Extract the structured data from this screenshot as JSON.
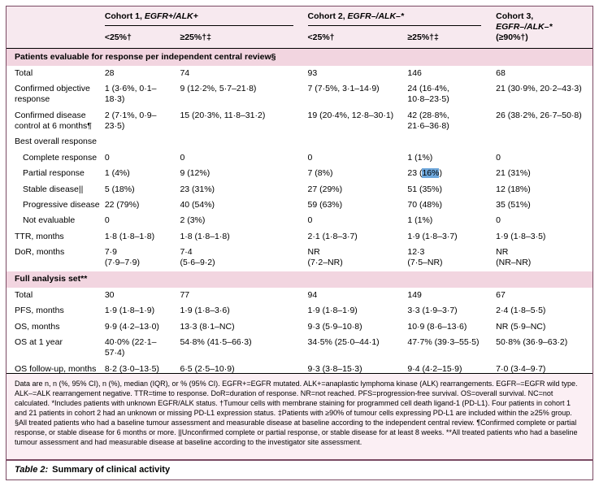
{
  "colors": {
    "border": "#7a4a63",
    "headbg": "#f7e9ef",
    "sectionbg": "#f2d5e0",
    "footbg": "#fbeff4",
    "sel": "#6fa8dc"
  },
  "header": {
    "groups": [
      {
        "prefix": "Cohort 1, ",
        "gene": "EGFR+/ALK+",
        "suffix": "",
        "subcols": [
          "<25%†",
          "≥25%†‡"
        ]
      },
      {
        "prefix": "Cohort 2, ",
        "gene": "EGFR–/ALK–*",
        "suffix": "",
        "subcols": [
          "<25%†",
          "≥25%†‡"
        ]
      },
      {
        "prefix": "Cohort 3, ",
        "gene": "EGFR–/ALK–*",
        "suffix": " (≥90%†)",
        "subcols": []
      }
    ]
  },
  "sections": [
    {
      "header": "Patients evaluable for response per independent central review§",
      "rows": [
        {
          "label": "Total",
          "indent": false,
          "values": [
            "28",
            "74",
            "93",
            "146",
            "68"
          ]
        },
        {
          "label": "Confirmed objective response",
          "indent": false,
          "values": [
            "1 (3·6%, 0·1–18·3)",
            "9 (12·2%, 5·7–21·8)",
            "7 (7·5%, 3·1–14·9)",
            "24 (16·4%,\n10·8–23·5)",
            "21 (30·9%, 20·2–43·3)"
          ]
        },
        {
          "label": "Confirmed disease control at 6 months¶",
          "indent": false,
          "values": [
            "2 (7·1%, 0·9–23·5)",
            "15 (20·3%, 11·8–31·2)",
            "19 (20·4%, 12·8–30·1)",
            "42 (28·8%,\n21·6–36·8)",
            "26 (38·2%, 26·7–50·8)"
          ]
        },
        {
          "label": "Best overall response",
          "indent": false,
          "values": null
        },
        {
          "label": "Complete response",
          "indent": true,
          "values": [
            "0",
            "0",
            "0",
            "1 (1%)",
            "0"
          ]
        },
        {
          "label": "Partial response",
          "indent": true,
          "values": [
            "1 (4%)",
            "9 (12%)",
            "7 (8%)",
            "23 (16%)",
            "21 (31%)"
          ],
          "highlight": {
            "col": 3,
            "text": "16%"
          }
        },
        {
          "label": "Stable disease||",
          "indent": true,
          "values": [
            "5 (18%)",
            "23 (31%)",
            "27 (29%)",
            "51 (35%)",
            "12 (18%)"
          ]
        },
        {
          "label": "Progressive disease",
          "indent": true,
          "values": [
            "22 (79%)",
            "40 (54%)",
            "59 (63%)",
            "70 (48%)",
            "35 (51%)"
          ]
        },
        {
          "label": "Not evaluable",
          "indent": true,
          "values": [
            "0",
            "2 (3%)",
            "0",
            "1 (1%)",
            "0"
          ]
        },
        {
          "label": "TTR, months",
          "indent": false,
          "values": [
            "1·8 (1·8–1·8)",
            "1·8 (1·8–1·8)",
            "2·1 (1·8–3·7)",
            "1·9 (1·8–3·7)",
            "1·9 (1·8–3·5)"
          ]
        },
        {
          "label": "DoR, months",
          "indent": false,
          "values": [
            "7·9\n(7·9–7·9)",
            "7·4\n(5·6–9·2)",
            "NR\n(7·2–NR)",
            "12·3\n(7·5–NR)",
            "NR\n(NR–NR)"
          ]
        }
      ]
    },
    {
      "header": "Full analysis set**",
      "rows": [
        {
          "label": "Total",
          "indent": false,
          "values": [
            "30",
            "77",
            "94",
            "149",
            "67"
          ]
        },
        {
          "label": "PFS, months",
          "indent": false,
          "values": [
            "1·9 (1·8–1·9)",
            "1·9 (1·8–3·6)",
            "1·9 (1·8–1·9)",
            "3·3 (1·9–3·7)",
            "2·4 (1·8–5·5)"
          ]
        },
        {
          "label": "OS, months",
          "indent": false,
          "values": [
            "9·9 (4·2–13·0)",
            "13·3 (8·1–NC)",
            "9·3 (5·9–10·8)",
            "10·9 (8·6–13·6)",
            "NR (5·9–NC)"
          ]
        },
        {
          "label": "OS at 1 year",
          "indent": false,
          "values": [
            "40·0% (22·1–57·4)",
            "54·8% (41·5–66·3)",
            "34·5% (25·0–44·1)",
            "47·7% (39·3–55·5)",
            "50·8% (36·9–63·2)"
          ]
        },
        {
          "label": "OS follow-up, months",
          "indent": false,
          "values": [
            "8·2 (3·0–13·5)",
            "6·5 (2·5–10·9)",
            "9·3 (3·8–15·3)",
            "9·4 (4·2–15·9)",
            "7·0 (3·4–9·7)"
          ]
        }
      ]
    }
  ],
  "footnote": "Data are n, n (%, 95% CI), n (%), median (IQR), or % (95% CI). EGFR+=EGFR mutated. ALK+=anaplastic lymphoma kinase (ALK) rearrangements. EGFR–=EGFR wild type. ALK–=ALK rearrangement negative. TTR=time to response. DoR=duration of response. NR=not reached. PFS=progression-free survival. OS=overall survival. NC=not calculated. *Includes patients with unknown EGFR/ALK status. †Tumour cells with membrane staining for programmed cell death ligand-1 (PD-L1). Four patients in cohort 1 and 21 patients in cohort 2 had an unknown or missing PD-L1 expression status. ‡Patients with ≥90% of tumour cells expressing PD-L1 are included within the ≥25% group. §All treated patients who had a baseline tumour assessment and measurable disease at baseline according to the independent central review. ¶Confirmed complete or partial response, or stable disease for 6 months or more. ||Unconfirmed complete or partial response, or stable disease for at least 8 weeks. **All treated patients who had a baseline tumour assessment and had measurable disease at baseline according to the investigator site assessment.",
  "caption": {
    "label": "Table 2:",
    "text": "Summary of clinical activity"
  }
}
